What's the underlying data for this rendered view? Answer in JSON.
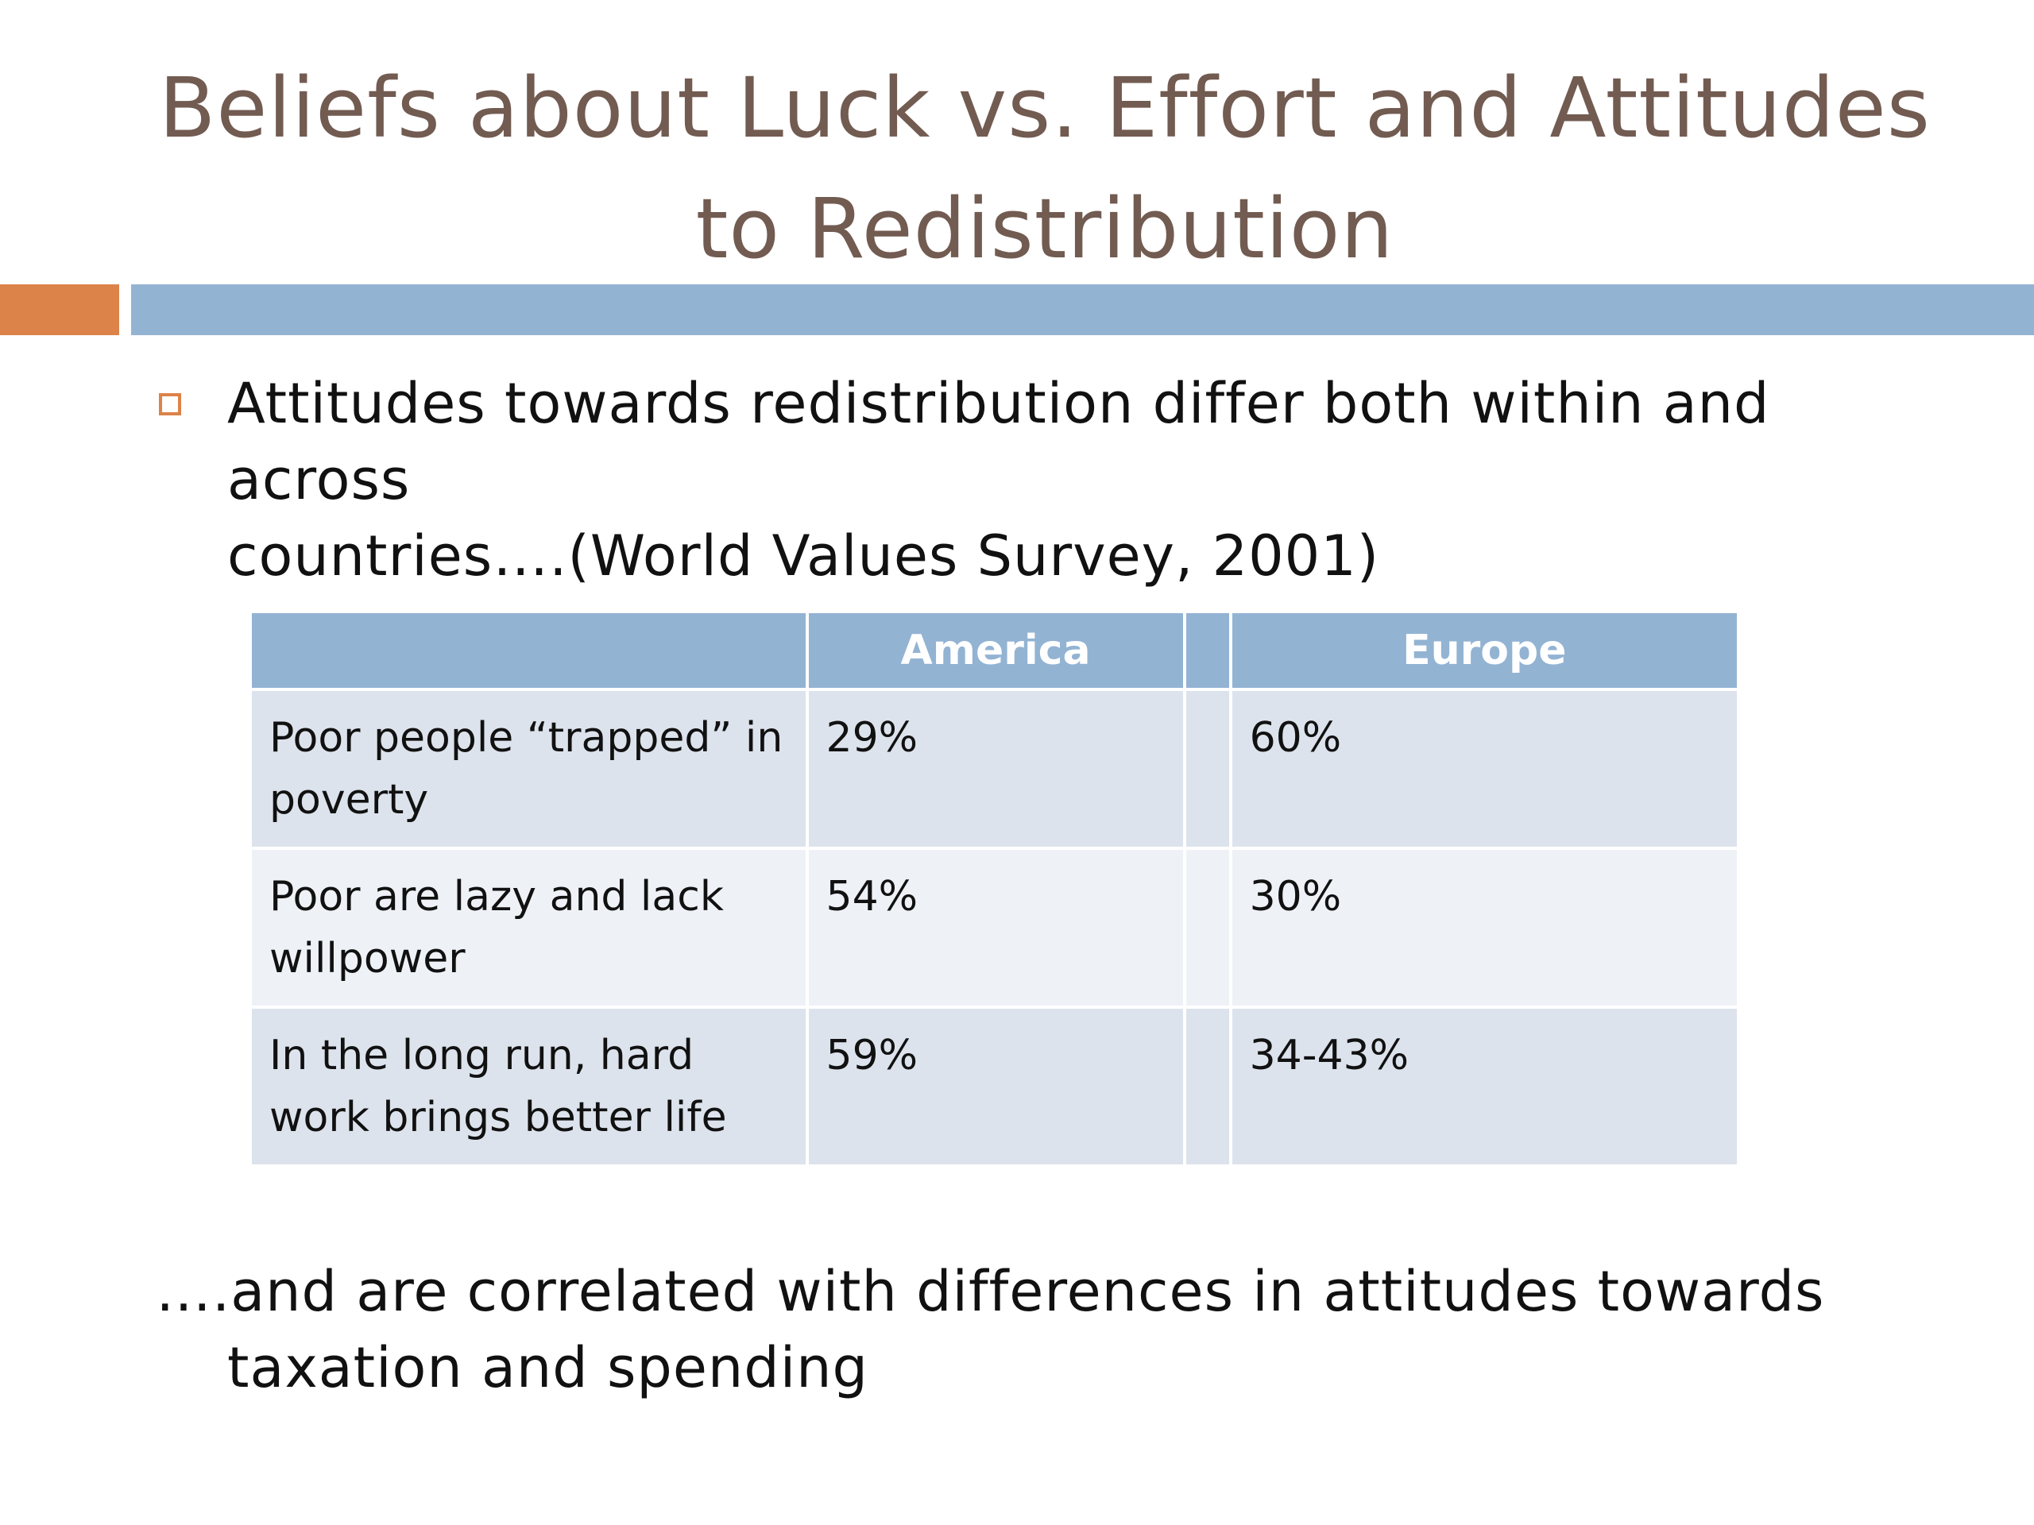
{
  "slide": {
    "title_line1": "Beliefs about Luck vs. Effort and Attitudes",
    "title_line2": "to Redistribution",
    "intro_line1": "Attitudes towards redistribution differ both within and across",
    "intro_line2": "countries….(World Values Survey, 2001)",
    "closing_line1": "….and are correlated with differences in attitudes towards",
    "closing_line2": "taxation and spending"
  },
  "table": {
    "headers": [
      "",
      "America",
      "",
      "Europe"
    ],
    "rows": [
      {
        "label_line1": "Poor people “trapped” in",
        "label_line2": "poverty",
        "america": "29%",
        "gap": "",
        "europe": "60%"
      },
      {
        "label_line1": "Poor are lazy and lack",
        "label_line2": "willpower",
        "america": "54%",
        "gap": "",
        "europe": "30%"
      },
      {
        "label_line1": "In the long run, hard",
        "label_line2": "work brings better life",
        "america": "59%",
        "gap": "",
        "europe": "34-43%"
      }
    ]
  },
  "colors": {
    "title": "#725b51",
    "accent_orange": "#dc8349",
    "accent_blue": "#93b3d3",
    "row_dark": "#dde3ec",
    "row_light": "#eef2f7"
  }
}
